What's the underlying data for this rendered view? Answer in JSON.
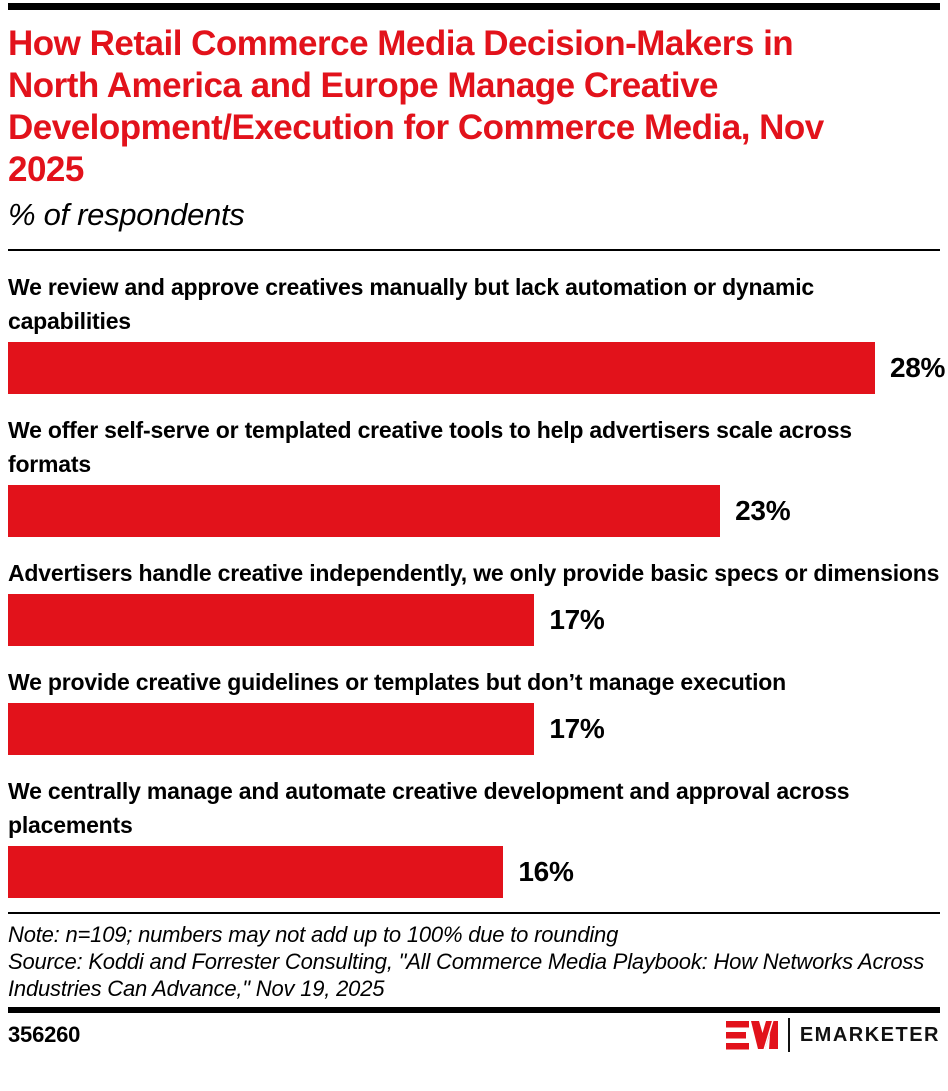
{
  "header": {
    "title": "How Retail Commerce Media Decision-Makers in North America and Europe Manage Creative Development/Execution for Commerce Media, Nov 2025",
    "subtitle": "% of respondents"
  },
  "colors": {
    "accent_red": "#E2121B",
    "text_black": "#000000"
  },
  "chart_data": {
    "type": "bar",
    "orientation": "horizontal",
    "title": "How Retail Commerce Media Decision-Makers in North America and Europe Manage Creative Development/Execution for Commerce Media, Nov 2025",
    "subtitle": "% of respondents",
    "xlabel": "",
    "ylabel": "",
    "xlim": [
      0,
      30.1
    ],
    "grid": false,
    "legend": false,
    "bar_color": "#E2121B",
    "categories": [
      "We review and approve creatives manually but lack automation or dynamic capabilities",
      "We offer self-serve or templated creative tools to help advertisers scale across formats",
      "Advertisers handle creative independently, we only provide basic specs or dimensions",
      "We provide creative guidelines or templates but don’t manage execution",
      "We centrally manage and automate creative development and approval across placements"
    ],
    "values": [
      28,
      23,
      17,
      17,
      16
    ],
    "value_labels": [
      "28%",
      "23%",
      "17%",
      "17%",
      "16%"
    ]
  },
  "footer": {
    "note": "Note: n=109; numbers may not add up to 100% due to rounding",
    "source": "Source: Koddi and Forrester Consulting, \"All Commerce Media Playbook: How Networks Across Industries Can Advance,\" Nov 19, 2025",
    "chart_id": "356260",
    "brand": "EMARKETER"
  }
}
